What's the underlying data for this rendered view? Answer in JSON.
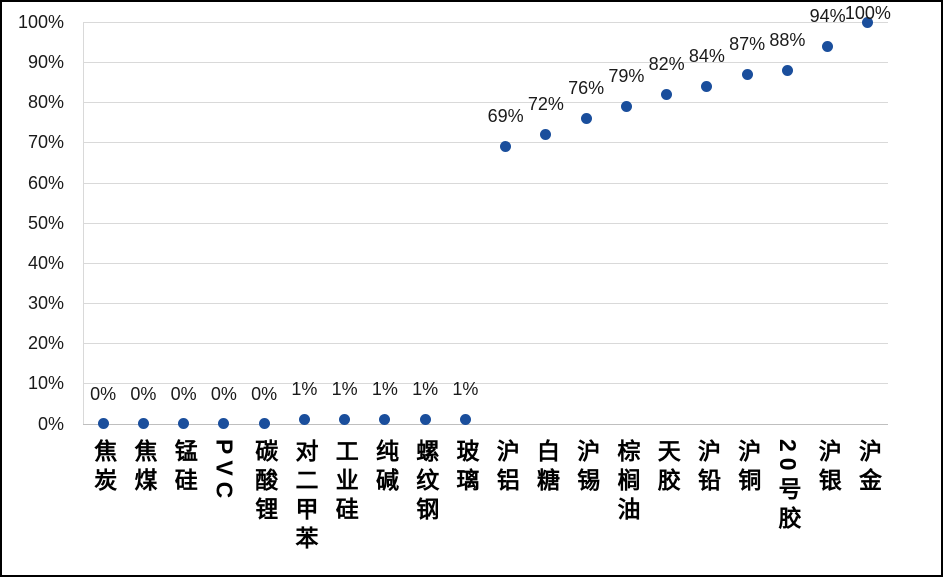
{
  "chart_data": {
    "type": "scatter",
    "title": "",
    "xlabel": "",
    "ylabel": "",
    "categories": [
      "焦炭",
      "焦煤",
      "锰硅",
      "PVC",
      "碳酸锂",
      "对二甲苯",
      "工业硅",
      "纯碱",
      "螺纹钢",
      "玻璃",
      "沪铝",
      "白糖",
      "沪锡",
      "棕榈油",
      "天胶",
      "沪铅",
      "沪铜",
      "20号胶",
      "沪银",
      "沪金"
    ],
    "values": [
      0,
      0,
      0,
      0,
      0,
      1,
      1,
      1,
      1,
      1,
      69,
      72,
      76,
      79,
      82,
      84,
      87,
      88,
      94,
      100
    ],
    "point_labels": [
      "0%",
      "0%",
      "0%",
      "0%",
      "0%",
      "1%",
      "1%",
      "1%",
      "1%",
      "1%",
      "69%",
      "72%",
      "76%",
      "79%",
      "82%",
      "84%",
      "87%",
      "88%",
      "94%",
      "100%"
    ],
    "y_ticks": [
      "0%",
      "10%",
      "20%",
      "30%",
      "40%",
      "50%",
      "60%",
      "70%",
      "80%",
      "90%",
      "100%"
    ],
    "ylim": [
      0,
      100
    ],
    "y_tick_step": 10,
    "grid": "horizontal-on",
    "legend_position": "none",
    "marker_color": "#1A4E9C",
    "gridline_color": "#D9D9D9",
    "axis_line_color": "#BFBFBF",
    "text_color": "#1a1a1a",
    "background_color": "#FFFFFF",
    "border_color": "#000000"
  }
}
